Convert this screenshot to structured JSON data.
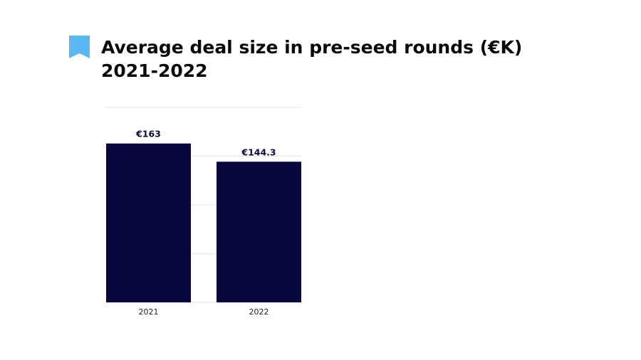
{
  "header": {
    "icon": "bookmark-icon",
    "icon_color": "#5bb8f2",
    "title_line1": "Average deal size in pre-seed rounds (€K)",
    "title_line2": "2021-2022"
  },
  "chart_data": {
    "type": "bar",
    "categories": [
      "2021",
      "2022"
    ],
    "values": [
      163,
      144.3
    ],
    "data_labels": [
      "€163",
      "€144.3"
    ],
    "title": "Average deal size in pre-seed rounds (€K) 2021-2022",
    "xlabel": "",
    "ylabel": "",
    "ylim": [
      0,
      200
    ],
    "grid": true,
    "legend": "none",
    "bar_color": "#08073f",
    "grid_color": "#e6e6e6"
  }
}
